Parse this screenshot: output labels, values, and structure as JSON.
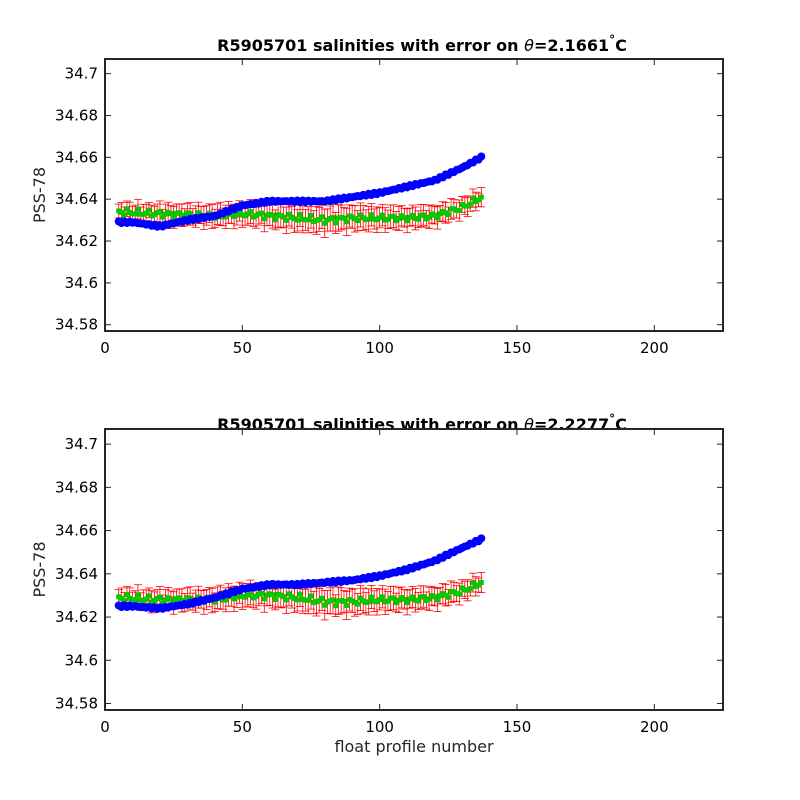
{
  "chart_data": [
    {
      "type": "scatter",
      "title_prefix": "R5905701 salinities with error on ",
      "theta_symbol": "θ",
      "theta_value": "=2.1661",
      "degree_symbol": "°",
      "unit": "C",
      "xlabel": "",
      "ylabel": "PSS-78",
      "xlim": [
        0,
        225
      ],
      "ylim": [
        34.577,
        34.707
      ],
      "xticks": [
        0,
        50,
        100,
        150,
        200
      ],
      "xtick_labels": [
        "0",
        "50",
        "100",
        "150",
        "200"
      ],
      "yticks": [
        34.58,
        34.6,
        34.62,
        34.64,
        34.66,
        34.68,
        34.7
      ],
      "ytick_labels": [
        "34.58",
        "34.6",
        "34.62",
        "34.64",
        "34.66",
        "34.68",
        "34.7"
      ],
      "grid": false,
      "colors": {
        "float": "#0000ff",
        "mapped": "#00cc00",
        "error": "#ff0000"
      },
      "profile_start": 5,
      "profile_end": 137,
      "float_salinity_control_points": {
        "x": [
          5,
          10,
          20,
          30,
          40,
          50,
          60,
          70,
          80,
          90,
          100,
          110,
          120,
          130,
          137
        ],
        "y": [
          34.629,
          34.629,
          34.627,
          34.63,
          34.632,
          34.637,
          34.639,
          34.639,
          34.639,
          34.641,
          34.643,
          34.646,
          34.649,
          34.655,
          34.66
        ]
      },
      "mapped_salinity_control_points": {
        "x": [
          5,
          20,
          40,
          50,
          60,
          70,
          80,
          90,
          100,
          110,
          120,
          130,
          137
        ],
        "y": [
          34.634,
          34.633,
          34.632,
          34.633,
          34.632,
          34.631,
          34.63,
          34.631,
          34.631,
          34.631,
          34.632,
          34.636,
          34.641
        ]
      },
      "error_half_width_control_points": {
        "x": [
          5,
          80,
          137
        ],
        "y": [
          0.004,
          0.006,
          0.004
        ]
      }
    },
    {
      "type": "scatter",
      "title_prefix": "R5905701 salinities with error on ",
      "theta_symbol": "θ",
      "theta_value": "=2.2277",
      "degree_symbol": "°",
      "unit": "C",
      "xlabel": "float profile number",
      "ylabel": "PSS-78",
      "xlim": [
        0,
        225
      ],
      "ylim": [
        34.577,
        34.707
      ],
      "xticks": [
        0,
        50,
        100,
        150,
        200
      ],
      "xtick_labels": [
        "0",
        "50",
        "100",
        "150",
        "200"
      ],
      "yticks": [
        34.58,
        34.6,
        34.62,
        34.64,
        34.66,
        34.68,
        34.7
      ],
      "ytick_labels": [
        "34.58",
        "34.6",
        "34.62",
        "34.64",
        "34.66",
        "34.68",
        "34.7"
      ],
      "grid": false,
      "colors": {
        "float": "#0000ff",
        "mapped": "#00cc00",
        "error": "#ff0000"
      },
      "profile_start": 5,
      "profile_end": 137,
      "float_salinity_control_points": {
        "x": [
          5,
          10,
          20,
          30,
          40,
          50,
          60,
          70,
          80,
          90,
          100,
          110,
          120,
          130,
          137
        ],
        "y": [
          34.625,
          34.625,
          34.624,
          34.626,
          34.629,
          34.633,
          34.635,
          34.635,
          34.636,
          34.637,
          34.639,
          34.642,
          34.646,
          34.652,
          34.656
        ]
      },
      "mapped_salinity_control_points": {
        "x": [
          5,
          20,
          40,
          50,
          60,
          70,
          80,
          90,
          100,
          110,
          120,
          130,
          137
        ],
        "y": [
          34.629,
          34.628,
          34.628,
          34.63,
          34.63,
          34.629,
          34.627,
          34.627,
          34.628,
          34.628,
          34.629,
          34.632,
          34.636
        ]
      },
      "error_half_width_control_points": {
        "x": [
          5,
          80,
          137
        ],
        "y": [
          0.004,
          0.006,
          0.004
        ]
      }
    }
  ]
}
